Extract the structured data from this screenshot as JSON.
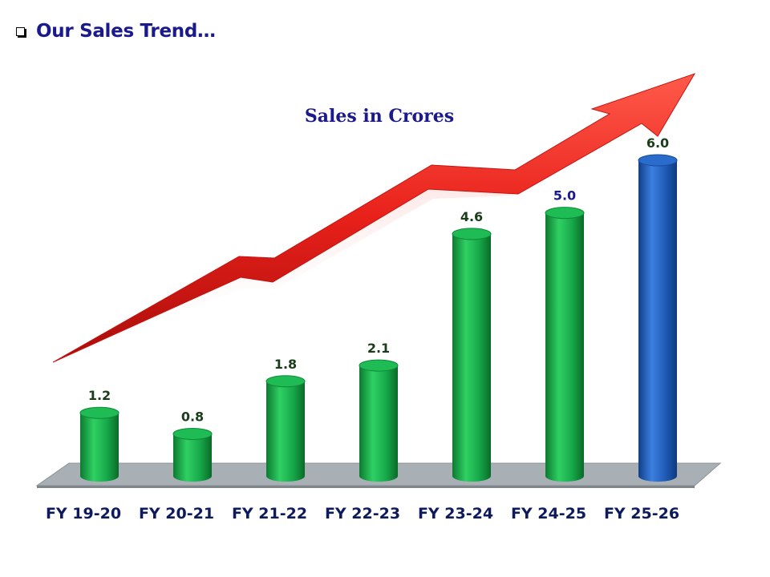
{
  "header": {
    "bullet_icon": "checkbox-bullet-icon",
    "title": "Our Sales Trend…"
  },
  "chart_data": {
    "type": "bar",
    "title": "Sales in Crores",
    "categories": [
      "FY 19-20",
      "FY 20-21",
      "FY 21-22",
      "FY 22-23",
      "FY 23-24",
      "FY 24-25",
      "FY 25-26"
    ],
    "values": [
      1.2,
      0.8,
      1.8,
      2.1,
      4.6,
      5.0,
      6.0
    ],
    "value_labels": [
      "1.2",
      "0.8",
      "1.8",
      "2.1",
      "4.6",
      "5.0",
      "6.0"
    ],
    "ylim": [
      0,
      6.0
    ],
    "grid": false,
    "bar_colors": [
      "#1aa84a",
      "#1aa84a",
      "#1aa84a",
      "#1aa84a",
      "#1aa84a",
      "#1aa84a",
      "#1f5bb5"
    ],
    "label_colors": [
      "#1a3d1a",
      "#1a3d1a",
      "#1a3d1a",
      "#1a3d1a",
      "#1a3d1a",
      "#1a1a8c",
      "#1a3d1a"
    ],
    "trend_arrow_color": "#e8201a",
    "floor_color": "#a9b0b5"
  }
}
